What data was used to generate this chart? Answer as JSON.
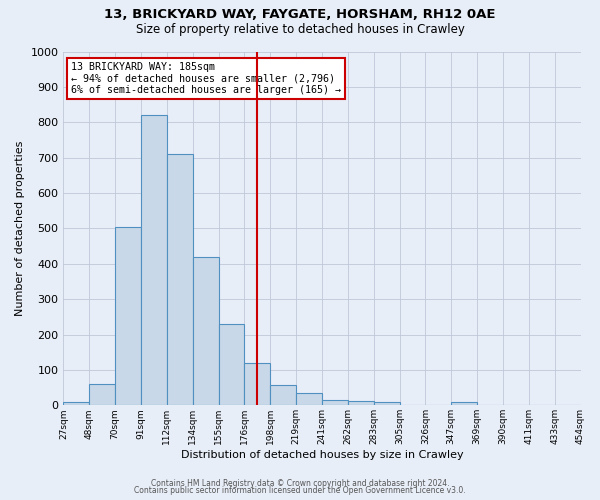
{
  "title": "13, BRICKYARD WAY, FAYGATE, HORSHAM, RH12 0AE",
  "subtitle": "Size of property relative to detached houses in Crawley",
  "xlabel": "Distribution of detached houses by size in Crawley",
  "ylabel": "Number of detached properties",
  "bin_labels": [
    "27sqm",
    "48sqm",
    "70sqm",
    "91sqm",
    "112sqm",
    "134sqm",
    "155sqm",
    "176sqm",
    "198sqm",
    "219sqm",
    "241sqm",
    "262sqm",
    "283sqm",
    "305sqm",
    "326sqm",
    "347sqm",
    "369sqm",
    "390sqm",
    "411sqm",
    "433sqm",
    "454sqm"
  ],
  "bar_values": [
    8,
    60,
    505,
    820,
    710,
    420,
    230,
    120,
    57,
    35,
    14,
    11,
    8,
    0,
    0,
    8,
    0,
    0,
    0,
    0
  ],
  "bar_color": "#c8d8e8",
  "bar_edge_color": "#5090c0",
  "vline_bin": 7.5,
  "vline_color": "#cc0000",
  "ylim": [
    0,
    1000
  ],
  "yticks": [
    0,
    100,
    200,
    300,
    400,
    500,
    600,
    700,
    800,
    900,
    1000
  ],
  "annotation_title": "13 BRICKYARD WAY: 185sqm",
  "annotation_line1": "← 94% of detached houses are smaller (2,796)",
  "annotation_line2": "6% of semi-detached houses are larger (165) →",
  "annotation_box_color": "#cc0000",
  "grid_color": "#c0c8d8",
  "bg_color": "#e8eef8",
  "footer1": "Contains HM Land Registry data © Crown copyright and database right 2024.",
  "footer2": "Contains public sector information licensed under the Open Government Licence v3.0."
}
